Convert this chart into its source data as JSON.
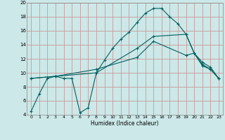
{
  "xlabel": "Humidex (Indice chaleur)",
  "bg_color": "#cce8e8",
  "grid_color": "#cc9999",
  "line_color": "#006060",
  "xlim": [
    -0.5,
    23.5
  ],
  "ylim": [
    4,
    20
  ],
  "xticks": [
    0,
    1,
    2,
    3,
    4,
    5,
    6,
    7,
    8,
    9,
    10,
    11,
    12,
    13,
    14,
    15,
    16,
    17,
    18,
    19,
    20,
    21,
    22,
    23
  ],
  "yticks": [
    4,
    6,
    8,
    10,
    12,
    14,
    16,
    18,
    20
  ],
  "line1_x": [
    0,
    1,
    2,
    3,
    4,
    5,
    6,
    7,
    8,
    9,
    10,
    11,
    12,
    13,
    14,
    15,
    16,
    17,
    18,
    19,
    20,
    21,
    22,
    23
  ],
  "line1_y": [
    4.5,
    7.0,
    9.2,
    9.5,
    9.2,
    9.2,
    4.3,
    5.0,
    10.0,
    11.8,
    13.5,
    14.8,
    15.8,
    17.2,
    18.5,
    19.2,
    19.2,
    18.0,
    17.0,
    15.5,
    12.8,
    11.0,
    10.5,
    9.2
  ],
  "line2_x": [
    0,
    3,
    8,
    13,
    15,
    19,
    20,
    21,
    22,
    23
  ],
  "line2_y": [
    9.2,
    9.5,
    10.0,
    13.5,
    15.2,
    15.5,
    12.8,
    11.2,
    10.5,
    9.2
  ],
  "line3_x": [
    0,
    3,
    8,
    13,
    15,
    19,
    20,
    21,
    22,
    23
  ],
  "line3_y": [
    9.2,
    9.5,
    10.5,
    12.2,
    14.5,
    12.5,
    12.8,
    11.5,
    10.8,
    9.2
  ]
}
